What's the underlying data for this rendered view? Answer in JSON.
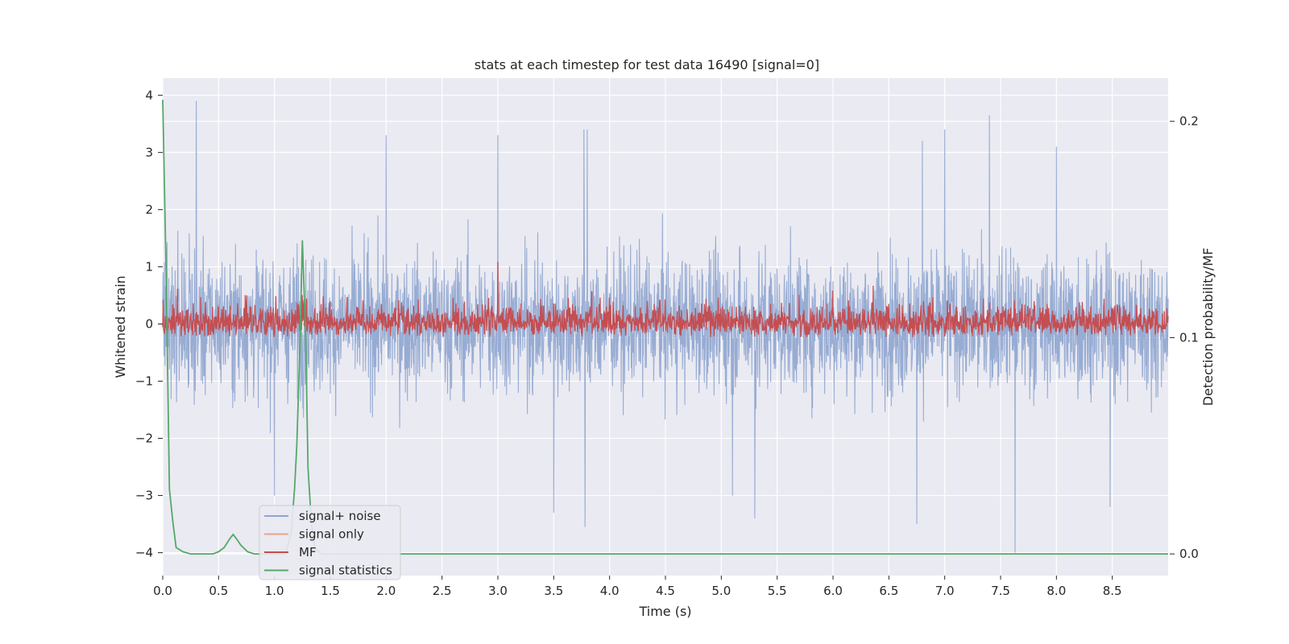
{
  "chart_data": {
    "type": "line",
    "title": "stats at each timestep for test data 16490 [signal=0]",
    "xlabel": "Time (s)",
    "ylabel_left": "Whitened strain",
    "ylabel_right": "Detection probability/MF",
    "xlim": [
      0.0,
      9.0
    ],
    "ylim_left": [
      -4.4,
      4.3
    ],
    "ylim_right": [
      -0.01,
      0.22
    ],
    "x_ticks": [
      0.0,
      0.5,
      1.0,
      1.5,
      2.0,
      2.5,
      3.0,
      3.5,
      4.0,
      4.5,
      5.0,
      5.5,
      6.0,
      6.5,
      7.0,
      7.5,
      8.0,
      8.5
    ],
    "x_tick_labels": [
      "0.0",
      "0.5",
      "1.0",
      "1.5",
      "2.0",
      "2.5",
      "3.0",
      "3.5",
      "4.0",
      "4.5",
      "5.0",
      "5.5",
      "6.0",
      "6.5",
      "7.0",
      "7.5",
      "8.0",
      "8.5"
    ],
    "y_ticks_left": [
      4,
      3,
      2,
      1,
      0,
      -1,
      -2,
      -3,
      -4
    ],
    "y_tick_labels_left": [
      "4",
      "3",
      "2",
      "1",
      "0",
      "−1",
      "−2",
      "−3",
      "−4"
    ],
    "y_ticks_right": [
      0.2,
      0.1,
      0.0
    ],
    "y_tick_labels_right": [
      "0.2",
      "0.1",
      "0.0"
    ],
    "grid": true,
    "legend_position": "bottom-left",
    "series": [
      {
        "name": "signal+ noise",
        "axis": "left",
        "color": "#8ea5cf",
        "kind": "noise",
        "summary": {
          "mean": 0.0,
          "typical_min": -2.2,
          "typical_max": 2.3,
          "max": 3.9,
          "min": -4.0
        },
        "spikes": [
          [
            0.3,
            3.9
          ],
          [
            7.4,
            3.65
          ],
          [
            3.77,
            3.4
          ],
          [
            3.8,
            3.4
          ],
          [
            2.0,
            3.3
          ],
          [
            6.8,
            3.2
          ],
          [
            7.0,
            3.4
          ],
          [
            3.0,
            3.3
          ],
          [
            8.0,
            3.1
          ],
          [
            7.63,
            -4.0
          ],
          [
            3.78,
            -3.55
          ],
          [
            6.75,
            -3.5
          ],
          [
            5.3,
            -3.4
          ],
          [
            1.0,
            -3.0
          ],
          [
            8.48,
            -3.2
          ],
          [
            3.5,
            -3.3
          ],
          [
            5.1,
            -3.0
          ]
        ]
      },
      {
        "name": "signal only",
        "axis": "left",
        "color": "#e8a48a",
        "kind": "flat",
        "value": 0.0
      },
      {
        "name": "MF",
        "axis": "right",
        "color": "#c44e52",
        "kind": "noise",
        "summary": {
          "baseline": 0.1,
          "typical_max": 0.128,
          "max": 0.135
        }
      },
      {
        "name": "signal statistics",
        "axis": "right",
        "color": "#55a868",
        "kind": "curve",
        "x": [
          0.0,
          0.03,
          0.06,
          0.09,
          0.12,
          0.18,
          0.25,
          0.35,
          0.45,
          0.5,
          0.55,
          0.6,
          0.63,
          0.66,
          0.7,
          0.76,
          0.82,
          0.9,
          1.0,
          1.1,
          1.15,
          1.18,
          1.2,
          1.23,
          1.25,
          1.28,
          1.3,
          1.33,
          1.36,
          1.42,
          1.5,
          2.0,
          3.0,
          4.0,
          5.0,
          6.0,
          7.0,
          8.0,
          9.0
        ],
        "y": [
          0.21,
          0.13,
          0.03,
          0.015,
          0.003,
          0.001,
          0.0,
          0.0,
          0.0,
          0.001,
          0.003,
          0.007,
          0.009,
          0.007,
          0.004,
          0.001,
          0.0,
          0.0,
          0.0,
          0.0,
          0.01,
          0.03,
          0.05,
          0.1,
          0.145,
          0.1,
          0.04,
          0.015,
          0.003,
          0.0,
          0.0,
          0.0,
          0.0,
          0.0,
          0.0,
          0.0,
          0.0,
          0.0,
          0.0
        ]
      }
    ]
  }
}
